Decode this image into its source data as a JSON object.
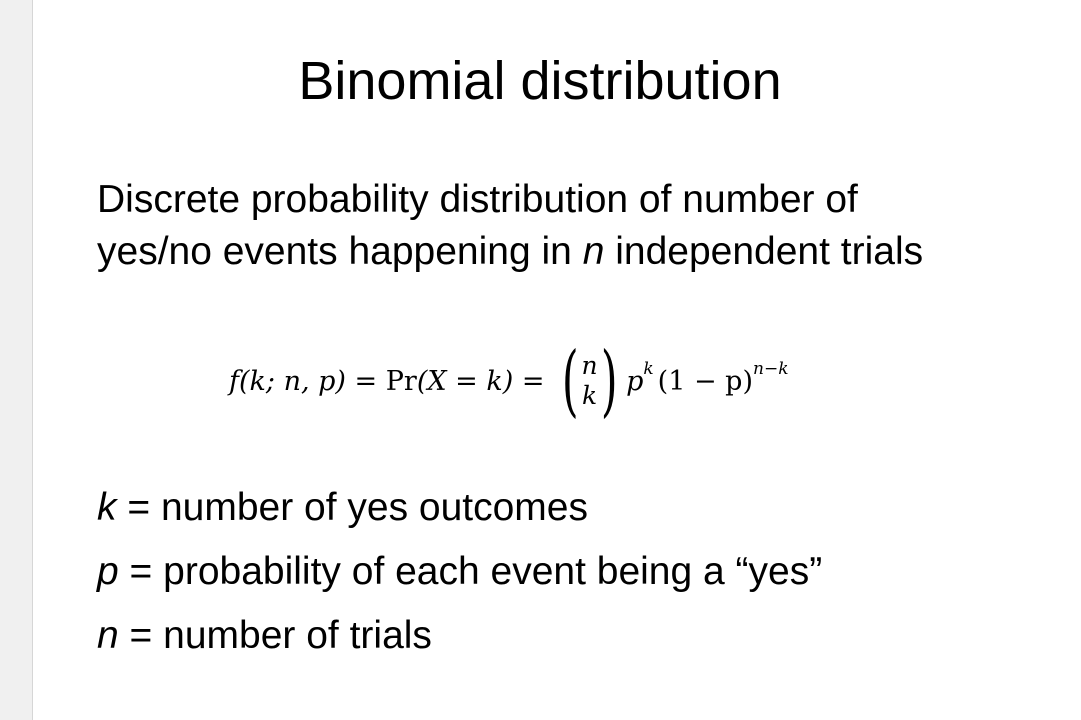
{
  "slide": {
    "title": "Binomial distribution",
    "subtitle_line1": "Discrete probability distribution of number of",
    "subtitle_line2_pre": "yes/no events happening in ",
    "subtitle_line2_var": "n",
    "subtitle_line2_post": " independent trials"
  },
  "formula": {
    "f": "f",
    "args": "(k; n, p)",
    "eq1": " = ",
    "pr": "Pr",
    "pr_args": "(X = k)",
    "eq2": " = ",
    "binom_top": "n",
    "binom_bottom": "k",
    "p": "p",
    "p_exp": "k",
    "one_minus_p": "(1 − p)",
    "q_exp": "n−k"
  },
  "definitions": [
    {
      "var": "k",
      "text": " = number of yes outcomes"
    },
    {
      "var": "p",
      "text": " = probability of each event being a “yes”"
    },
    {
      "var": "n",
      "text": " = number of trials"
    }
  ]
}
